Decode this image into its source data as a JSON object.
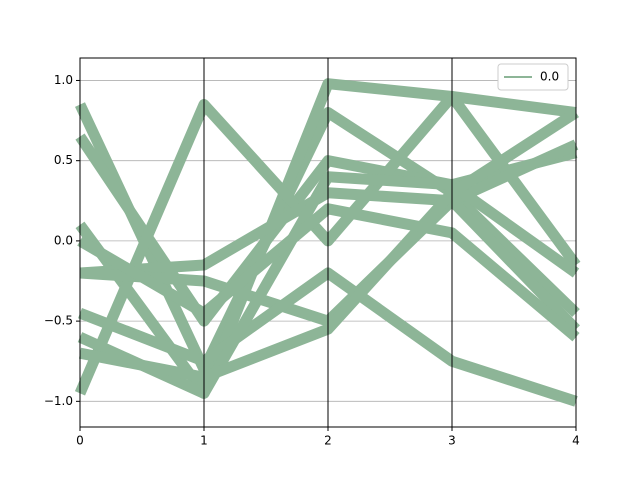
{
  "chart_data": {
    "type": "parallel",
    "x": [
      0,
      1,
      2,
      3,
      4
    ],
    "xlim": [
      0,
      4
    ],
    "xticks": [
      0,
      1,
      2,
      3,
      4
    ],
    "ylim": [
      -1.16,
      1.14
    ],
    "yticks": [
      {
        "value": -1,
        "label": "−1.0"
      },
      {
        "value": -0.5,
        "label": "−0.5"
      },
      {
        "value": 0,
        "label": "0.0"
      },
      {
        "value": 0.5,
        "label": "0.5"
      },
      {
        "value": 1,
        "label": "1.0"
      }
    ],
    "grid": true,
    "legend": "upper right",
    "series": [
      {
        "name": "0.0",
        "color": "#8db597",
        "lines": [
          [
            0.85,
            -0.8,
            0.8,
            0.3,
            -0.45
          ],
          [
            0.65,
            -0.5,
            0.5,
            0.35,
            0.55
          ],
          [
            0.1,
            -0.95,
            0.98,
            0.9,
            -0.15
          ],
          [
            -0.95,
            0.85,
            0.0,
            0.9,
            0.8
          ],
          [
            -0.2,
            -0.15,
            0.3,
            0.25,
            -0.55
          ],
          [
            -0.2,
            -0.25,
            -0.5,
            0.25,
            0.6
          ],
          [
            -0.45,
            -0.75,
            -0.2,
            -0.75,
            -1.0
          ],
          [
            -0.6,
            -0.95,
            0.4,
            0.35,
            -0.2
          ],
          [
            -0.7,
            -0.85,
            -0.55,
            0.3,
            0.8
          ],
          [
            0.0,
            -0.45,
            0.2,
            0.05,
            -0.6
          ]
        ]
      }
    ]
  }
}
